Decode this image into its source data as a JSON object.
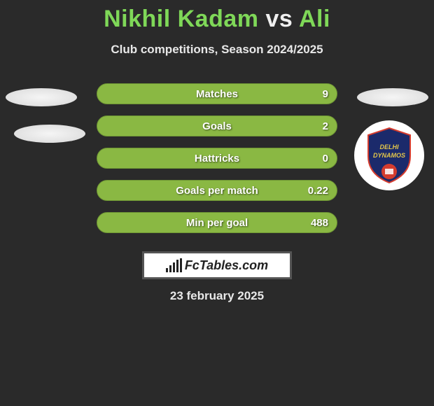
{
  "title": {
    "player1": "Nikhil Kadam",
    "vs": "vs",
    "player2": "Ali"
  },
  "subtitle": "Club competitions, Season 2024/2025",
  "bar_color": "#8ab843",
  "bar_border_color": "#6e9534",
  "stats": [
    {
      "label": "Matches",
      "value_right": "9"
    },
    {
      "label": "Goals",
      "value_right": "2"
    },
    {
      "label": "Hattricks",
      "value_right": "0"
    },
    {
      "label": "Goals per match",
      "value_right": "0.22"
    },
    {
      "label": "Min per goal",
      "value_right": "488"
    }
  ],
  "badge": {
    "name": "delhi-dynamos",
    "crest_bg": "#1b2a6b",
    "crest_accent": "#d43c2e",
    "crest_text_color": "#e3c64a",
    "crest_line1": "DELHI",
    "crest_line2": "DYNAMOS"
  },
  "logo": {
    "text": "FcTables.com"
  },
  "date": "23 february 2025"
}
